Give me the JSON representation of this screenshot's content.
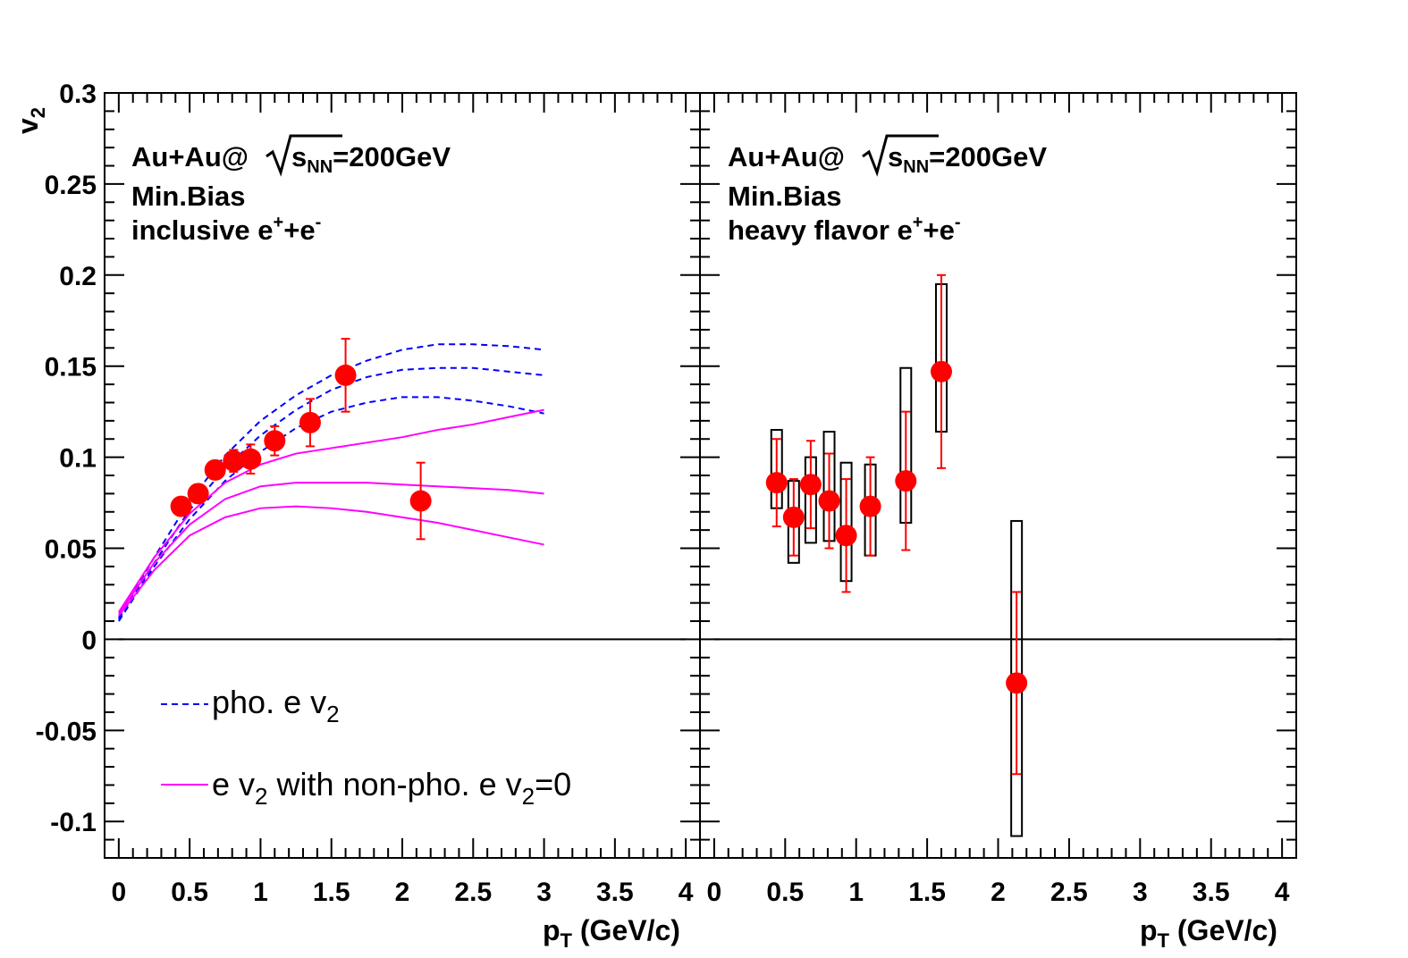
{
  "chart_data": [
    {
      "type": "scatter",
      "panel": "left",
      "ylabel": "v",
      "ylabel_sub": "2",
      "xlabel": "p",
      "xlabel_sub": "T",
      "xlabel_rest": " (GeV/c)",
      "xlim": [
        -0.1,
        4.1
      ],
      "ylim": [
        -0.12,
        0.3
      ],
      "x_ticks": [
        "0",
        "0.5",
        "1",
        "1.5",
        "2",
        "2.5",
        "3",
        "3.5",
        "4"
      ],
      "y_ticks": [
        "0.3",
        "0.25",
        "0.2",
        "0.15",
        "0.1",
        "0.05",
        "0",
        "-0.05",
        "-0.1"
      ],
      "annotations": {
        "line1_pre": "Au+Au@",
        "line1_s": "s",
        "line1_sub": "NN",
        "line1_post": "=200GeV",
        "line2": "Min.Bias",
        "line3_pre": "inclusive e",
        "line3_sup1": "+",
        "line3_mid": "+e",
        "line3_sup2": "-"
      },
      "legend": {
        "dashed_pre": "pho. e v",
        "dashed_sub": "2",
        "solid_pre": "e v",
        "solid_sub1": "2",
        "solid_mid": " with non-pho. e v",
        "solid_sub2": "2",
        "solid_post": "=0"
      },
      "colors": {
        "data": "#ff0000",
        "dashed": "#0000ff",
        "solid": "#ff00ff",
        "zero_line": "#000000"
      },
      "points": [
        {
          "x": 0.44,
          "y": 0.073,
          "yerr": 0.005
        },
        {
          "x": 0.56,
          "y": 0.08,
          "yerr": 0.005
        },
        {
          "x": 0.68,
          "y": 0.093,
          "yerr": 0.005
        },
        {
          "x": 0.81,
          "y": 0.098,
          "yerr": 0.006
        },
        {
          "x": 0.93,
          "y": 0.099,
          "yerr": 0.008
        },
        {
          "x": 1.1,
          "y": 0.109,
          "yerr": 0.008
        },
        {
          "x": 1.35,
          "y": 0.119,
          "yerr": 0.013
        },
        {
          "x": 1.6,
          "y": 0.145,
          "yerr": 0.02
        },
        {
          "x": 2.13,
          "y": 0.076,
          "yerr": 0.021
        }
      ],
      "dashed_curves": [
        {
          "x": [
            0,
            0.25,
            0.5,
            0.75,
            1.0,
            1.25,
            1.5,
            1.75,
            2.0,
            2.25,
            2.5,
            2.75,
            3.0
          ],
          "y": [
            0.012,
            0.045,
            0.076,
            0.101,
            0.12,
            0.134,
            0.145,
            0.153,
            0.159,
            0.162,
            0.162,
            0.161,
            0.159
          ]
        },
        {
          "x": [
            0,
            0.25,
            0.5,
            0.75,
            1.0,
            1.25,
            1.5,
            1.75,
            2.0,
            2.25,
            2.5,
            2.75,
            3.0
          ],
          "y": [
            0.011,
            0.042,
            0.071,
            0.094,
            0.112,
            0.126,
            0.137,
            0.144,
            0.148,
            0.149,
            0.149,
            0.147,
            0.145
          ]
        },
        {
          "x": [
            0,
            0.25,
            0.5,
            0.75,
            1.0,
            1.25,
            1.5,
            1.75,
            2.0,
            2.25,
            2.5,
            2.75,
            3.0
          ],
          "y": [
            0.01,
            0.04,
            0.066,
            0.087,
            0.103,
            0.116,
            0.125,
            0.13,
            0.133,
            0.133,
            0.131,
            0.128,
            0.124
          ]
        }
      ],
      "solid_curves": [
        {
          "x": [
            0,
            0.25,
            0.5,
            0.75,
            1.0,
            1.25,
            1.5,
            1.75,
            2.0,
            2.25,
            2.5,
            2.75,
            3.0
          ],
          "y": [
            0.015,
            0.045,
            0.069,
            0.086,
            0.096,
            0.102,
            0.105,
            0.108,
            0.111,
            0.115,
            0.118,
            0.122,
            0.126
          ]
        },
        {
          "x": [
            0,
            0.25,
            0.5,
            0.75,
            1.0,
            1.25,
            1.5,
            1.75,
            2.0,
            2.25,
            2.5,
            2.75,
            3.0
          ],
          "y": [
            0.014,
            0.042,
            0.063,
            0.077,
            0.084,
            0.086,
            0.086,
            0.086,
            0.085,
            0.084,
            0.083,
            0.082,
            0.08
          ]
        },
        {
          "x": [
            0,
            0.25,
            0.5,
            0.75,
            1.0,
            1.25,
            1.5,
            1.75,
            2.0,
            2.25,
            2.5,
            2.75,
            3.0
          ],
          "y": [
            0.013,
            0.038,
            0.057,
            0.067,
            0.072,
            0.073,
            0.072,
            0.07,
            0.067,
            0.064,
            0.06,
            0.056,
            0.052
          ]
        }
      ]
    },
    {
      "type": "scatter",
      "panel": "right",
      "xlabel": "p",
      "xlabel_sub": "T",
      "xlabel_rest": " (GeV/c)",
      "xlim": [
        -0.1,
        4.1
      ],
      "ylim": [
        -0.12,
        0.3
      ],
      "x_ticks": [
        "0",
        "0.5",
        "1",
        "1.5",
        "2",
        "2.5",
        "3",
        "3.5",
        "4"
      ],
      "annotations": {
        "line1_pre": "Au+Au@",
        "line1_s": "s",
        "line1_sub": "NN",
        "line1_post": "=200GeV",
        "line2": "Min.Bias",
        "line3_pre": "heavy flavor e",
        "line3_sup1": "+",
        "line3_mid": "+e",
        "line3_sup2": "-"
      },
      "colors": {
        "data": "#ff0000",
        "sys_box": "#000000",
        "zero_line": "#000000"
      },
      "points": [
        {
          "x": 0.44,
          "y": 0.086,
          "yerr": 0.024,
          "sys_lo": 0.072,
          "sys_hi": 0.115
        },
        {
          "x": 0.56,
          "y": 0.067,
          "yerr": 0.021,
          "sys_lo": 0.042,
          "sys_hi": 0.087
        },
        {
          "x": 0.68,
          "y": 0.085,
          "yerr": 0.024,
          "sys_lo": 0.053,
          "sys_hi": 0.1
        },
        {
          "x": 0.81,
          "y": 0.076,
          "yerr": 0.026,
          "sys_lo": 0.054,
          "sys_hi": 0.114
        },
        {
          "x": 0.93,
          "y": 0.057,
          "yerr": 0.031,
          "sys_lo": 0.032,
          "sys_hi": 0.097
        },
        {
          "x": 1.1,
          "y": 0.073,
          "yerr": 0.027,
          "sys_lo": 0.046,
          "sys_hi": 0.096
        },
        {
          "x": 1.35,
          "y": 0.087,
          "yerr": 0.038,
          "sys_lo": 0.064,
          "sys_hi": 0.149
        },
        {
          "x": 1.6,
          "y": 0.147,
          "yerr": 0.053,
          "sys_lo": 0.114,
          "sys_hi": 0.195
        },
        {
          "x": 2.13,
          "y": -0.024,
          "yerr": 0.05,
          "sys_lo": -0.108,
          "sys_hi": 0.065
        }
      ]
    }
  ]
}
